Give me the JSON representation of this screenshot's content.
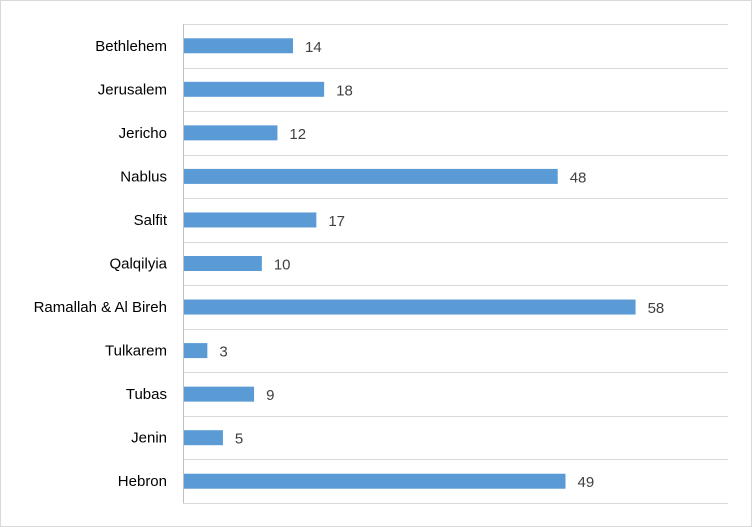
{
  "chart_data": {
    "type": "bar",
    "orientation": "horizontal",
    "categories": [
      "Bethlehem",
      "Jerusalem",
      "Jericho",
      "Nablus",
      "Salfit",
      "Qalqilyia",
      "Ramallah & Al Bireh",
      "Tulkarem",
      "Tubas",
      "Jenin",
      "Hebron"
    ],
    "values": [
      14,
      18,
      12,
      48,
      17,
      10,
      58,
      3,
      9,
      5,
      49
    ],
    "xlim": [
      0,
      70
    ],
    "grid": "horizontal lines between categories",
    "legend": "none",
    "data_labels": true,
    "colors": {
      "bar": "#5b9bd5",
      "grid": "#d9d9d9",
      "axis": "#bfbfbf",
      "value_text": "#404040",
      "category_text": "#000000"
    }
  }
}
